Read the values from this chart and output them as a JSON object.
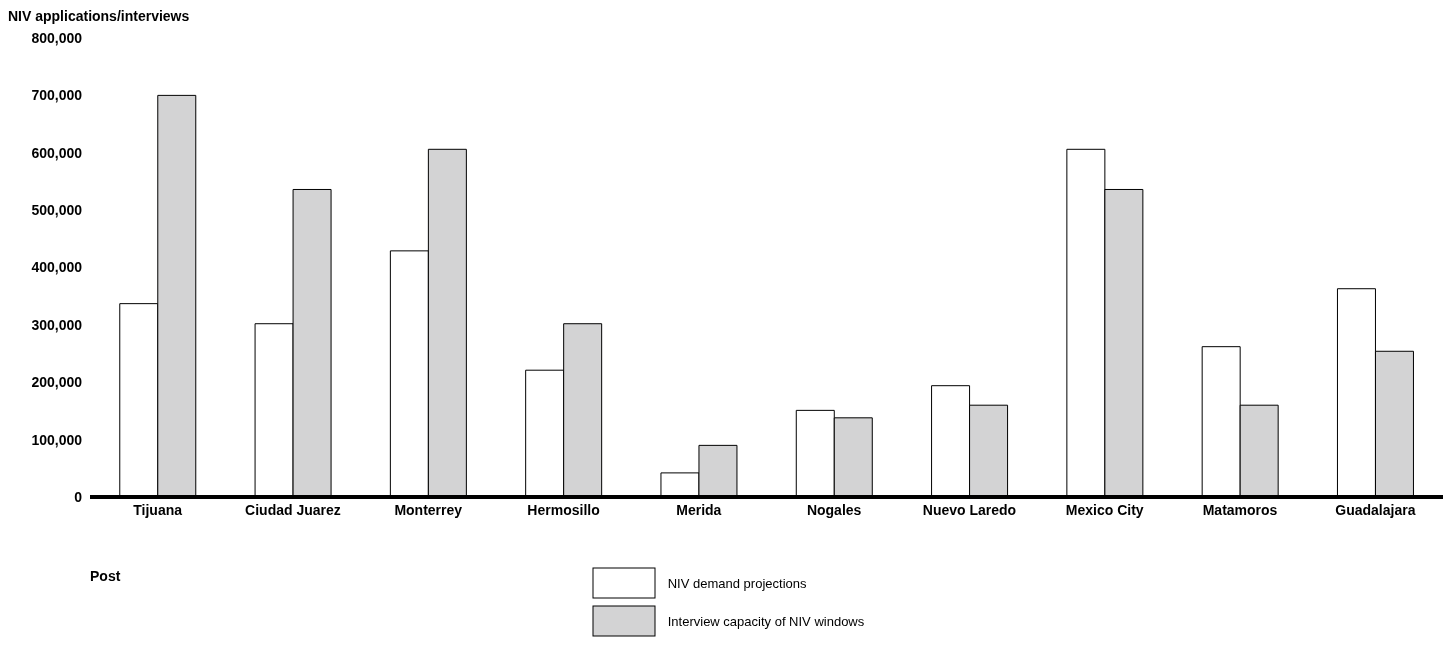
{
  "chart_data": {
    "type": "bar",
    "ylabel": "NIV applications/interviews",
    "xlabel": "Post",
    "categories": [
      "Tijuana",
      "Ciudad Juarez",
      "Monterrey",
      "Hermosillo",
      "Merida",
      "Nogales",
      "Nuevo Laredo",
      "Mexico City",
      "Matamoros",
      "Guadalajara"
    ],
    "series": [
      {
        "name": "NIV demand projections",
        "color": "#ffffff",
        "values": [
          337000,
          302000,
          429000,
          221000,
          42000,
          151000,
          194000,
          606000,
          262000,
          363000
        ]
      },
      {
        "name": "Interview capacity of NIV windows",
        "color": "#d3d3d4",
        "values": [
          700000,
          536000,
          606000,
          302000,
          90000,
          138000,
          160000,
          536000,
          160000,
          254000
        ]
      }
    ],
    "ylim": [
      0,
      800000
    ],
    "yticks": [
      {
        "value": 0,
        "label": "0"
      },
      {
        "value": 100000,
        "label": "100,000"
      },
      {
        "value": 200000,
        "label": "200,000"
      },
      {
        "value": 300000,
        "label": "300,000"
      },
      {
        "value": 400000,
        "label": "400,000"
      },
      {
        "value": 500000,
        "label": "500,000"
      },
      {
        "value": 600000,
        "label": "600,000"
      },
      {
        "value": 700000,
        "label": "700,000"
      },
      {
        "value": 800000,
        "label": "800,000"
      }
    ],
    "grid": false,
    "legend": "bottom"
  }
}
